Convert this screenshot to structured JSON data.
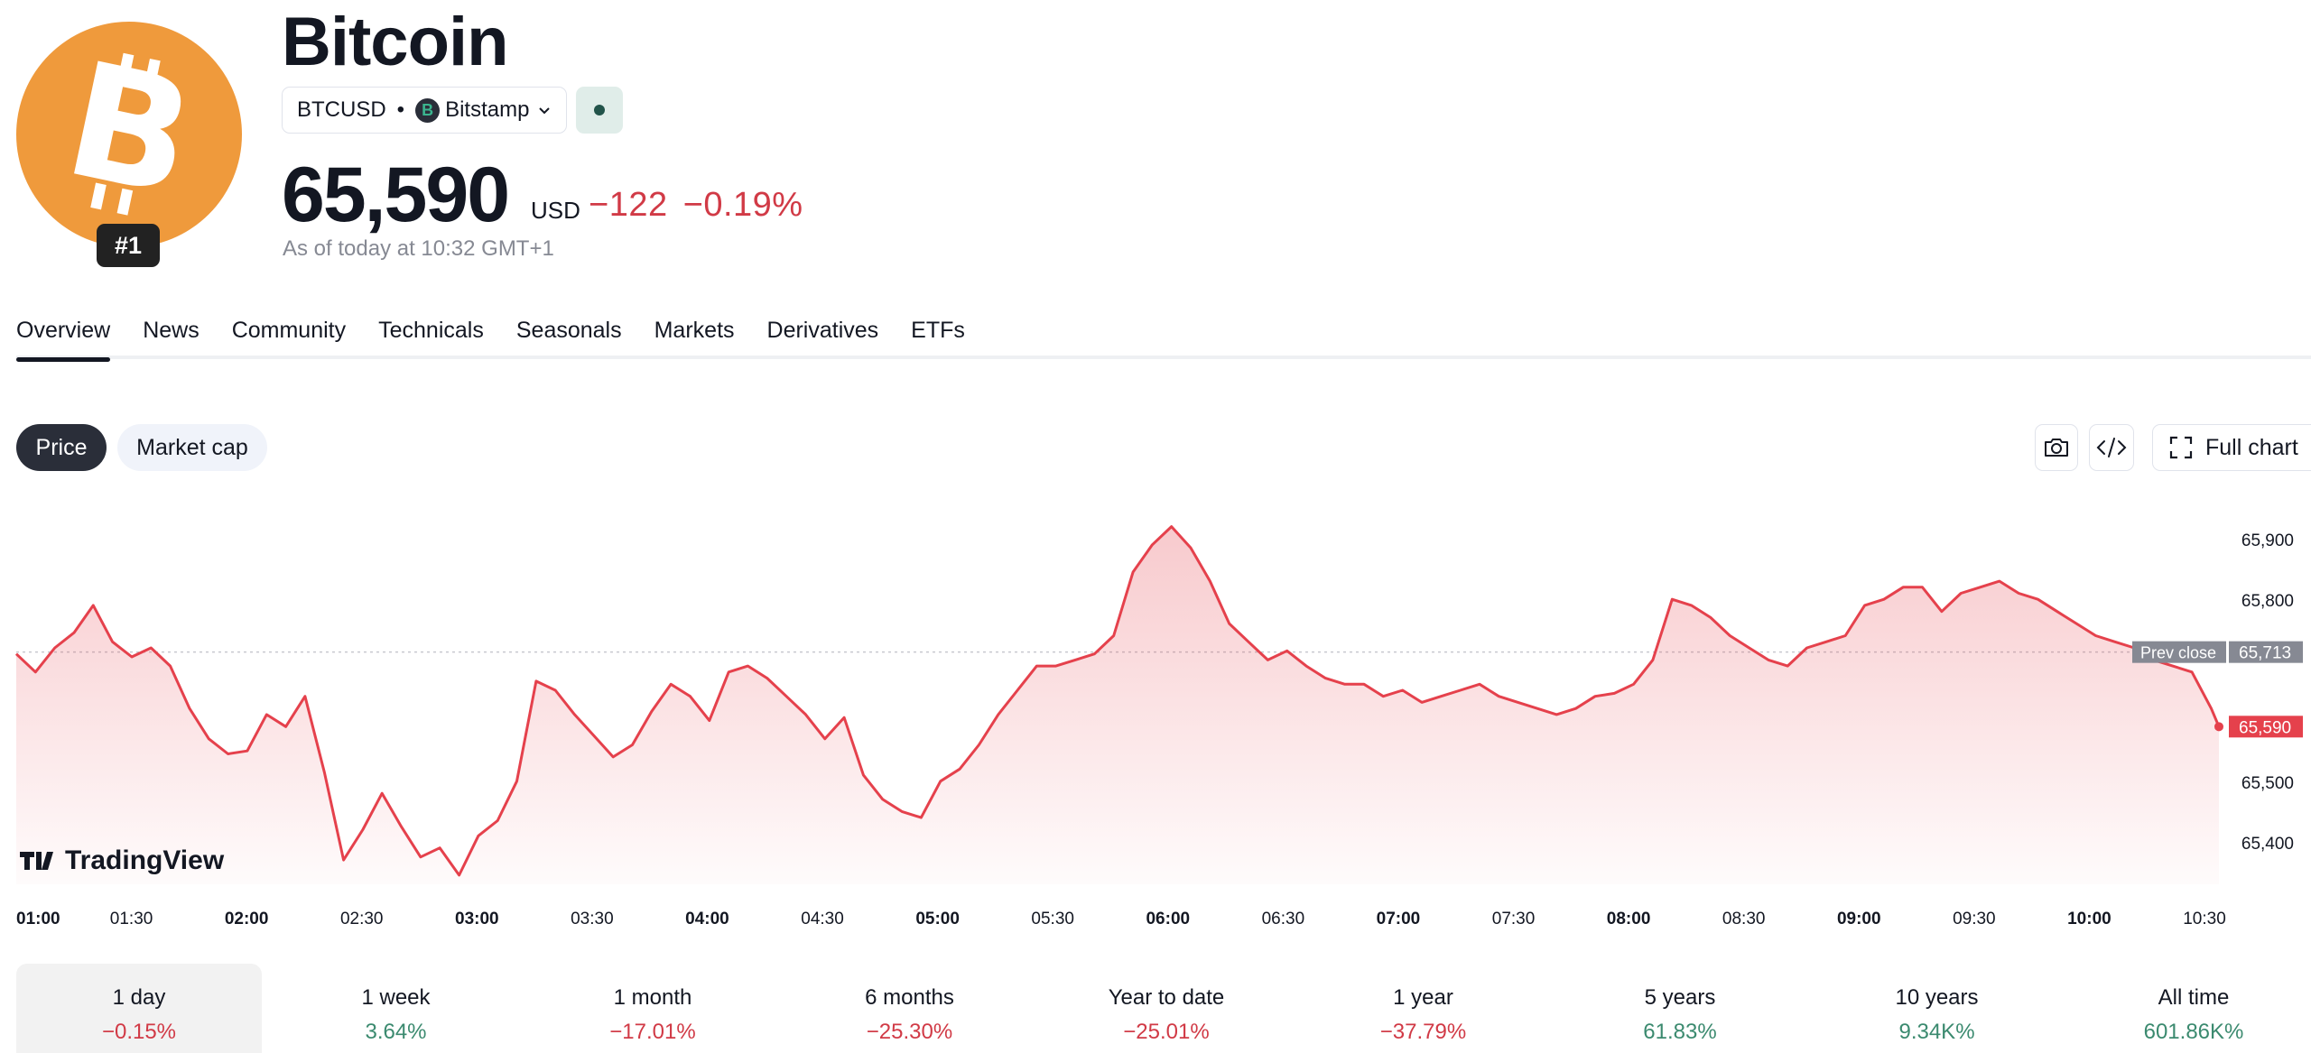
{
  "header": {
    "title": "Bitcoin",
    "rank": "#1",
    "symbol": "BTCUSD",
    "separator": "•",
    "exchange": "Bitstamp",
    "price": "65,590",
    "currency": "USD",
    "change": "−122",
    "change_pct": "−0.19%",
    "as_of": "As of today at 10:32 GMT+1"
  },
  "tabs": [
    "Overview",
    "News",
    "Community",
    "Technicals",
    "Seasonals",
    "Markets",
    "Derivatives",
    "ETFs"
  ],
  "pills": {
    "price": "Price",
    "market_cap": "Market cap"
  },
  "tools": {
    "full_chart": "Full chart"
  },
  "colors": {
    "line": "#e5414c",
    "positive": "#3b8a6f",
    "negative": "#d13a46",
    "brand": "#ef9a3c"
  },
  "icons": [
    "bitcoin-logo-icon",
    "bitstamp-icon",
    "chevron-down-icon",
    "camera-icon",
    "embed-code-icon",
    "fullscreen-icon",
    "tradingview-logo-icon"
  ],
  "chart_data": {
    "type": "area",
    "watermark": "TradingView",
    "x_ticks": [
      "01:00",
      "01:30",
      "02:00",
      "02:30",
      "03:00",
      "03:30",
      "04:00",
      "04:30",
      "05:00",
      "05:30",
      "06:00",
      "06:30",
      "07:00",
      "07:30",
      "08:00",
      "08:30",
      "09:00",
      "09:30",
      "10:00",
      "10:30"
    ],
    "bold_ticks": [
      "01:00",
      "02:00",
      "03:00",
      "04:00",
      "05:00",
      "06:00",
      "07:00",
      "08:00",
      "09:00",
      "10:00"
    ],
    "y_ticks": [
      65400,
      65500,
      65800,
      65900
    ],
    "ylim": [
      65330,
      65970
    ],
    "prev_close": {
      "label": "Prev close",
      "value": 65713,
      "display": "65,713"
    },
    "last": {
      "value": 65590,
      "display": "65,590"
    },
    "grid": false,
    "series": [
      {
        "x": [
          "01:00",
          "01:05",
          "01:10",
          "01:15",
          "01:20",
          "01:25",
          "01:30",
          "01:35",
          "01:40",
          "01:45",
          "01:50",
          "01:55",
          "02:00",
          "02:05",
          "02:10",
          "02:15",
          "02:20",
          "02:25",
          "02:30",
          "02:35",
          "02:40",
          "02:45",
          "02:50",
          "02:55",
          "03:00",
          "03:05",
          "03:10",
          "03:15",
          "03:20",
          "03:25",
          "03:30",
          "03:35",
          "03:40",
          "03:45",
          "03:50",
          "03:55",
          "04:00",
          "04:05",
          "04:10",
          "04:15",
          "04:20",
          "04:25",
          "04:30",
          "04:35",
          "04:40",
          "04:45",
          "04:50",
          "04:55",
          "05:00",
          "05:05",
          "05:10",
          "05:15",
          "05:20",
          "05:25",
          "05:30",
          "05:35",
          "05:40",
          "05:45",
          "05:50",
          "05:55",
          "06:00",
          "06:05",
          "06:10",
          "06:15",
          "06:20",
          "06:25",
          "06:30",
          "06:35",
          "06:40",
          "06:45",
          "06:50",
          "06:55",
          "07:00",
          "07:05",
          "07:10",
          "07:15",
          "07:20",
          "07:25",
          "07:30",
          "07:35",
          "07:40",
          "07:45",
          "07:50",
          "07:55",
          "08:00",
          "08:05",
          "08:10",
          "08:15",
          "08:20",
          "08:25",
          "08:30",
          "08:35",
          "08:40",
          "08:45",
          "08:50",
          "08:55",
          "09:00",
          "09:05",
          "09:10",
          "09:15",
          "09:20",
          "09:25",
          "09:30",
          "09:35",
          "09:40",
          "09:45",
          "09:50",
          "09:55",
          "10:00",
          "10:05",
          "10:10",
          "10:15",
          "10:20",
          "10:25",
          "10:30",
          "10:32"
        ],
        "values": [
          65710,
          65680,
          65720,
          65745,
          65790,
          65730,
          65705,
          65720,
          65690,
          65620,
          65570,
          65545,
          65550,
          65610,
          65590,
          65640,
          65515,
          65370,
          65420,
          65480,
          65425,
          65375,
          65390,
          65345,
          65410,
          65435,
          65500,
          65665,
          65650,
          65610,
          65575,
          65540,
          65560,
          65615,
          65660,
          65640,
          65600,
          65680,
          65690,
          65670,
          65640,
          65610,
          65570,
          65605,
          65510,
          65470,
          65450,
          65440,
          65500,
          65520,
          65560,
          65610,
          65650,
          65690,
          65690,
          65700,
          65710,
          65740,
          65845,
          65890,
          65920,
          65885,
          65830,
          65760,
          65730,
          65700,
          65715,
          65690,
          65670,
          65660,
          65660,
          65640,
          65650,
          65630,
          65640,
          65650,
          65660,
          65640,
          65630,
          65620,
          65610,
          65620,
          65640,
          65645,
          65660,
          65700,
          65800,
          65790,
          65770,
          65740,
          65720,
          65700,
          65690,
          65720,
          65730,
          65740,
          65790,
          65800,
          65820,
          65820,
          65780,
          65810,
          65820,
          65830,
          65810,
          65800,
          65780,
          65760,
          65740,
          65730,
          65720,
          65700,
          65690,
          65680,
          65620,
          65590
        ]
      }
    ]
  },
  "periods": [
    {
      "label": "1 day",
      "value": "−0.15%",
      "dir": "neg"
    },
    {
      "label": "1 week",
      "value": "3.64%",
      "dir": "pos"
    },
    {
      "label": "1 month",
      "value": "−17.01%",
      "dir": "neg"
    },
    {
      "label": "6 months",
      "value": "−25.30%",
      "dir": "neg"
    },
    {
      "label": "Year to date",
      "value": "−25.01%",
      "dir": "neg"
    },
    {
      "label": "1 year",
      "value": "−37.79%",
      "dir": "neg"
    },
    {
      "label": "5 years",
      "value": "61.83%",
      "dir": "pos"
    },
    {
      "label": "10 years",
      "value": "9.34K%",
      "dir": "pos"
    },
    {
      "label": "All time",
      "value": "601.86K%",
      "dir": "pos"
    }
  ]
}
